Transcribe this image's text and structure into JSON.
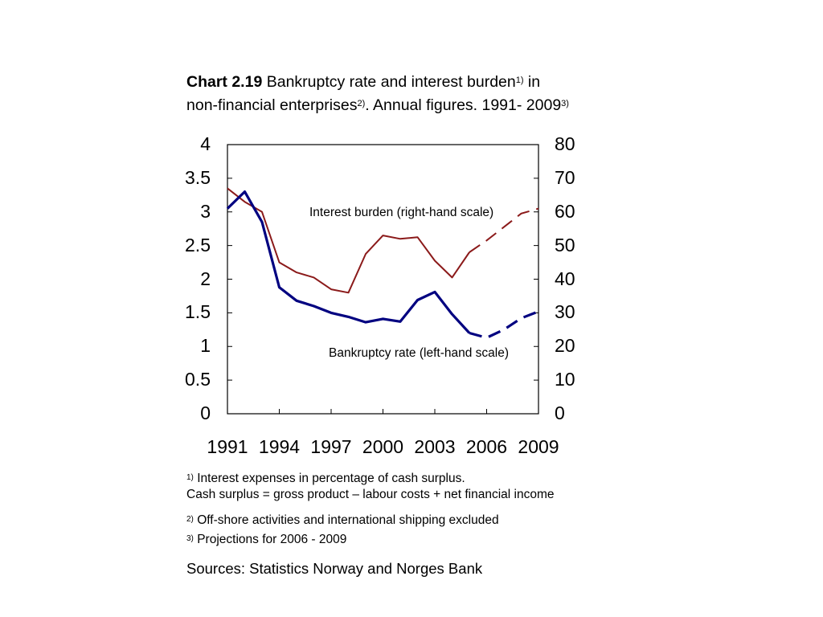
{
  "title": {
    "prefix": "Chart 2.19",
    "text1": " Bankruptcy rate and interest burden",
    "sup1": "1)",
    "text2": " in",
    "text3": "non-financial enterprises",
    "sup2": "2)",
    "text4": ". Annual figures. 1991- 2009",
    "sup3": "3)"
  },
  "chart_data": {
    "type": "line",
    "x_ticks": [
      "1991",
      "1994",
      "1997",
      "2000",
      "2003",
      "2006",
      "2009"
    ],
    "xlim": [
      1991,
      2009
    ],
    "y_left": {
      "ticks": [
        "4",
        "3.5",
        "3",
        "2.5",
        "2",
        "1.5",
        "1",
        "0.5",
        "0"
      ],
      "ylim": [
        0,
        4
      ]
    },
    "y_right": {
      "ticks": [
        "80",
        "70",
        "60",
        "50",
        "40",
        "30",
        "20",
        "10",
        "0"
      ],
      "ylim": [
        0,
        80
      ]
    },
    "series": [
      {
        "name": "Interest burden (right-hand scale)",
        "axis": "right",
        "color": "#8B1A1A",
        "x": [
          1991,
          1992,
          1993,
          1994,
          1995,
          1996,
          1997,
          1998,
          1999,
          2000,
          2001,
          2002,
          2003,
          2004,
          2005,
          2006,
          2007,
          2008,
          2009
        ],
        "y": [
          67,
          63,
          60,
          45,
          42,
          40.5,
          37,
          36,
          47.5,
          53,
          52,
          52.5,
          45.5,
          40.5,
          48,
          51.5,
          55.5,
          59.5,
          61
        ],
        "projection_from": 2005
      },
      {
        "name": "Bankruptcy rate (left-hand scale)",
        "axis": "left",
        "color": "#000080",
        "x": [
          1991,
          1992,
          1993,
          1994,
          1995,
          1996,
          1997,
          1998,
          1999,
          2000,
          2001,
          2002,
          2003,
          2004,
          2005,
          2006,
          2007,
          2008,
          2009
        ],
        "y": [
          3.05,
          3.3,
          2.85,
          1.88,
          1.68,
          1.6,
          1.5,
          1.44,
          1.36,
          1.41,
          1.37,
          1.69,
          1.81,
          1.48,
          1.2,
          1.13,
          1.25,
          1.42,
          1.52
        ],
        "projection_from": 2005
      }
    ],
    "annotations": [
      "Interest burden (right-hand scale)",
      "Bankruptcy rate (left-hand scale)"
    ],
    "grid": false
  },
  "notes": {
    "n1_sup": "1)",
    "n1_line1": " Interest expenses in percentage of cash surplus.",
    "n1_line2": "Cash surplus = gross product – labour costs +  net financial income",
    "n2_sup": "2)",
    "n2_text": "  Off-shore activities and international shipping excluded",
    "n3_sup": "3)",
    "n3_text": " Projections for 2006 - 2009"
  },
  "sources": "Sources: Statistics Norway and Norges Bank"
}
